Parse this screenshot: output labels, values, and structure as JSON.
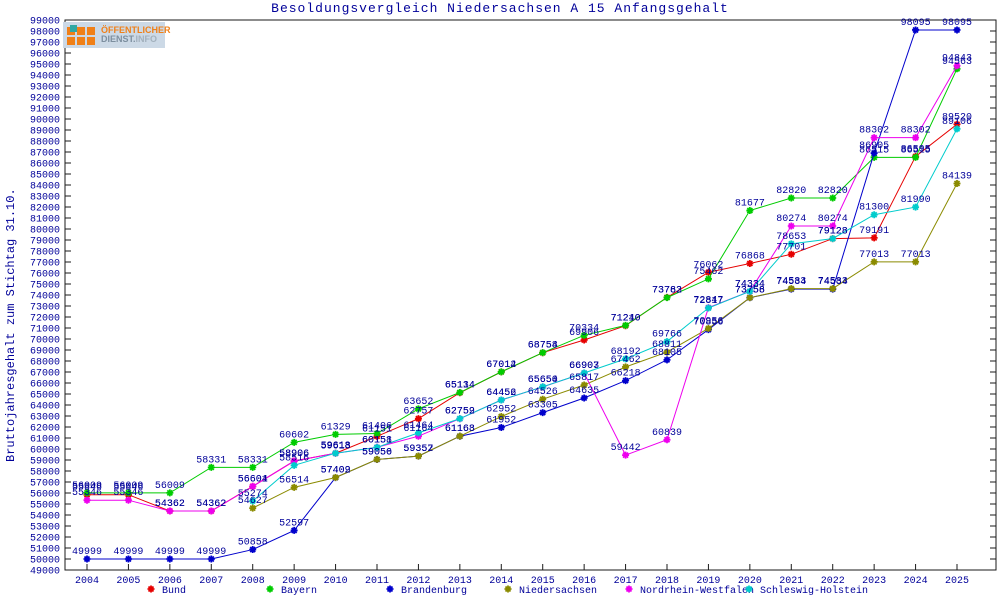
{
  "logo": {
    "bg_color": "#ccd9e6",
    "squares_color": "#f08018",
    "accent_color": "#2fa8a4",
    "line1": "ÖFFENTLICHER",
    "line2_part1": "DIENST.",
    "line2_part2": "INFO"
  },
  "chart_data": {
    "type": "line",
    "title": "Besoldungsvergleich Niedersachsen A 15 Anfangsgehalt",
    "ylabel": "Bruttojahresgehalt zum Stichtag 31.10.",
    "xlabel": "",
    "x": [
      2004,
      2005,
      2006,
      2007,
      2008,
      2009,
      2010,
      2011,
      2012,
      2013,
      2014,
      2015,
      2016,
      2017,
      2018,
      2019,
      2020,
      2021,
      2022,
      2023,
      2024,
      2025
    ],
    "ylim": [
      49000,
      99000
    ],
    "ytick_step": 1000,
    "grid": false,
    "legend_position": "bottom",
    "point_labels_shown": true,
    "label_color": "#000099",
    "axis_color": "#1a1a1a",
    "series": [
      {
        "name": "Bund",
        "color": "#e60000",
        "values": [
          55846,
          55846,
          54362,
          54362,
          56604,
          58906,
          59613,
          61151,
          62757,
          65114,
          67012,
          68754,
          69906,
          71210,
          73782,
          76062,
          76868,
          77701,
          79128,
          79191,
          86595,
          89520
        ]
      },
      {
        "name": "Bayern",
        "color": "#00cc00",
        "values": [
          56009,
          56009,
          56009,
          58331,
          58331,
          60602,
          61329,
          61406,
          63652,
          65134,
          67014,
          68758,
          70334,
          71240,
          73763,
          75462,
          81677,
          82820,
          82820,
          86515,
          86515,
          94563
        ]
      },
      {
        "name": "Brandenburg",
        "color": "#0000cc",
        "values": [
          49999,
          49999,
          49999,
          49999,
          50858,
          52597,
          57402,
          59050,
          59352,
          61163,
          61952,
          63305,
          64635,
          66218,
          68105,
          70856,
          73756,
          74534,
          74534,
          86905,
          98095,
          98095
        ]
      },
      {
        "name": "Niedersachsen",
        "color": "#8b8b00",
        "values": [
          null,
          null,
          null,
          null,
          54627,
          56514,
          57409,
          59056,
          59357,
          61168,
          62952,
          64526,
          65817,
          67462,
          68811,
          70956,
          73758,
          74583,
          74583,
          77013,
          77013,
          84139
        ]
      },
      {
        "name": "Nordrhein-Westfalen",
        "color": "#ee00ee",
        "values": [
          55346,
          55346,
          54362,
          54362,
          56601,
          58906,
          59618,
          60158,
          61164,
          62752,
          64452,
          65650,
          66903,
          59442,
          60839,
          72847,
          74334,
          80274,
          80274,
          88302,
          88302,
          94843
        ]
      },
      {
        "name": "Schleswig-Holstein",
        "color": "#00cccc",
        "values": [
          null,
          null,
          null,
          null,
          55274,
          58516,
          59618,
          60151,
          61464,
          62759,
          64456,
          65654,
          66907,
          68192,
          69766,
          72817,
          74334,
          78653,
          79128,
          81300,
          81990,
          89106
        ]
      }
    ]
  }
}
